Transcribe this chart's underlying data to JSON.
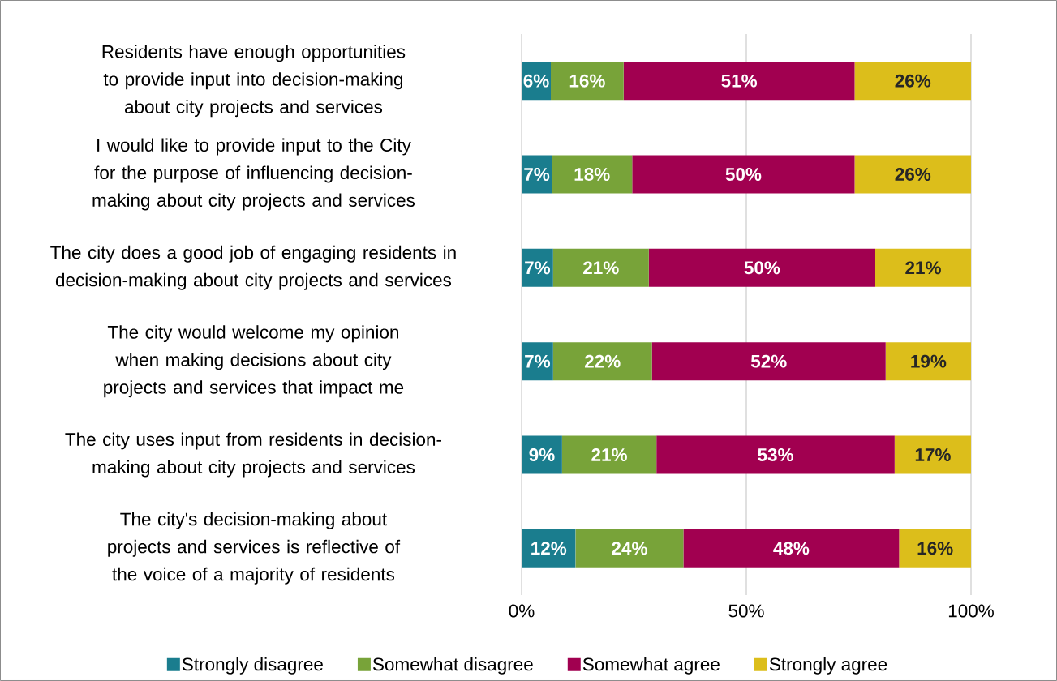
{
  "chart_data": {
    "type": "bar",
    "orientation": "horizontal",
    "stacked": true,
    "categories": [
      "Residents have enough opportunities to provide input into decision-making about city projects and services",
      "I would like to provide input to the City for the purpose of influencing decision-making about city projects and services",
      "The city does a good job of engaging residents in decision-making about city projects and services",
      "The city would welcome my opinion when making decisions about city projects and services that impact me",
      "The city uses input from residents in decision-making about city projects and services",
      "The city's decision-making about projects and services is reflective of the voice of a majority of residents"
    ],
    "series": [
      {
        "name": "Strongly disagree",
        "color": "#1a7d8e",
        "values": [
          6.5,
          6.7,
          7,
          7,
          9,
          12
        ],
        "value_labels": [
          "6%",
          "7%",
          "7%",
          "7%",
          "9%",
          "12%"
        ]
      },
      {
        "name": "Somewhat disagree",
        "color": "#78a339",
        "values": [
          16.2,
          17.9,
          21.3,
          22,
          21,
          24
        ],
        "value_labels": [
          "16%",
          "18%",
          "21%",
          "22%",
          "21%",
          "24%"
        ]
      },
      {
        "name": "Somewhat agree",
        "color": "#a10050",
        "values": [
          51.4,
          49.5,
          50.4,
          52,
          53,
          48
        ],
        "value_labels": [
          "51%",
          "50%",
          "50%",
          "52%",
          "53%",
          "48%"
        ]
      },
      {
        "name": "Strongly agree",
        "color": "#dcbe1b",
        "values": [
          25.9,
          25.9,
          21.3,
          19,
          17,
          16
        ],
        "value_labels": [
          "26%",
          "26%",
          "21%",
          "19%",
          "17%",
          "16%"
        ]
      }
    ],
    "xlim": [
      0,
      100
    ],
    "xticks": [
      {
        "value": 0,
        "label": "0%"
      },
      {
        "value": 50,
        "label": "50%"
      },
      {
        "value": 100,
        "label": "100%"
      }
    ],
    "grid": "x",
    "legend": "bottom"
  }
}
